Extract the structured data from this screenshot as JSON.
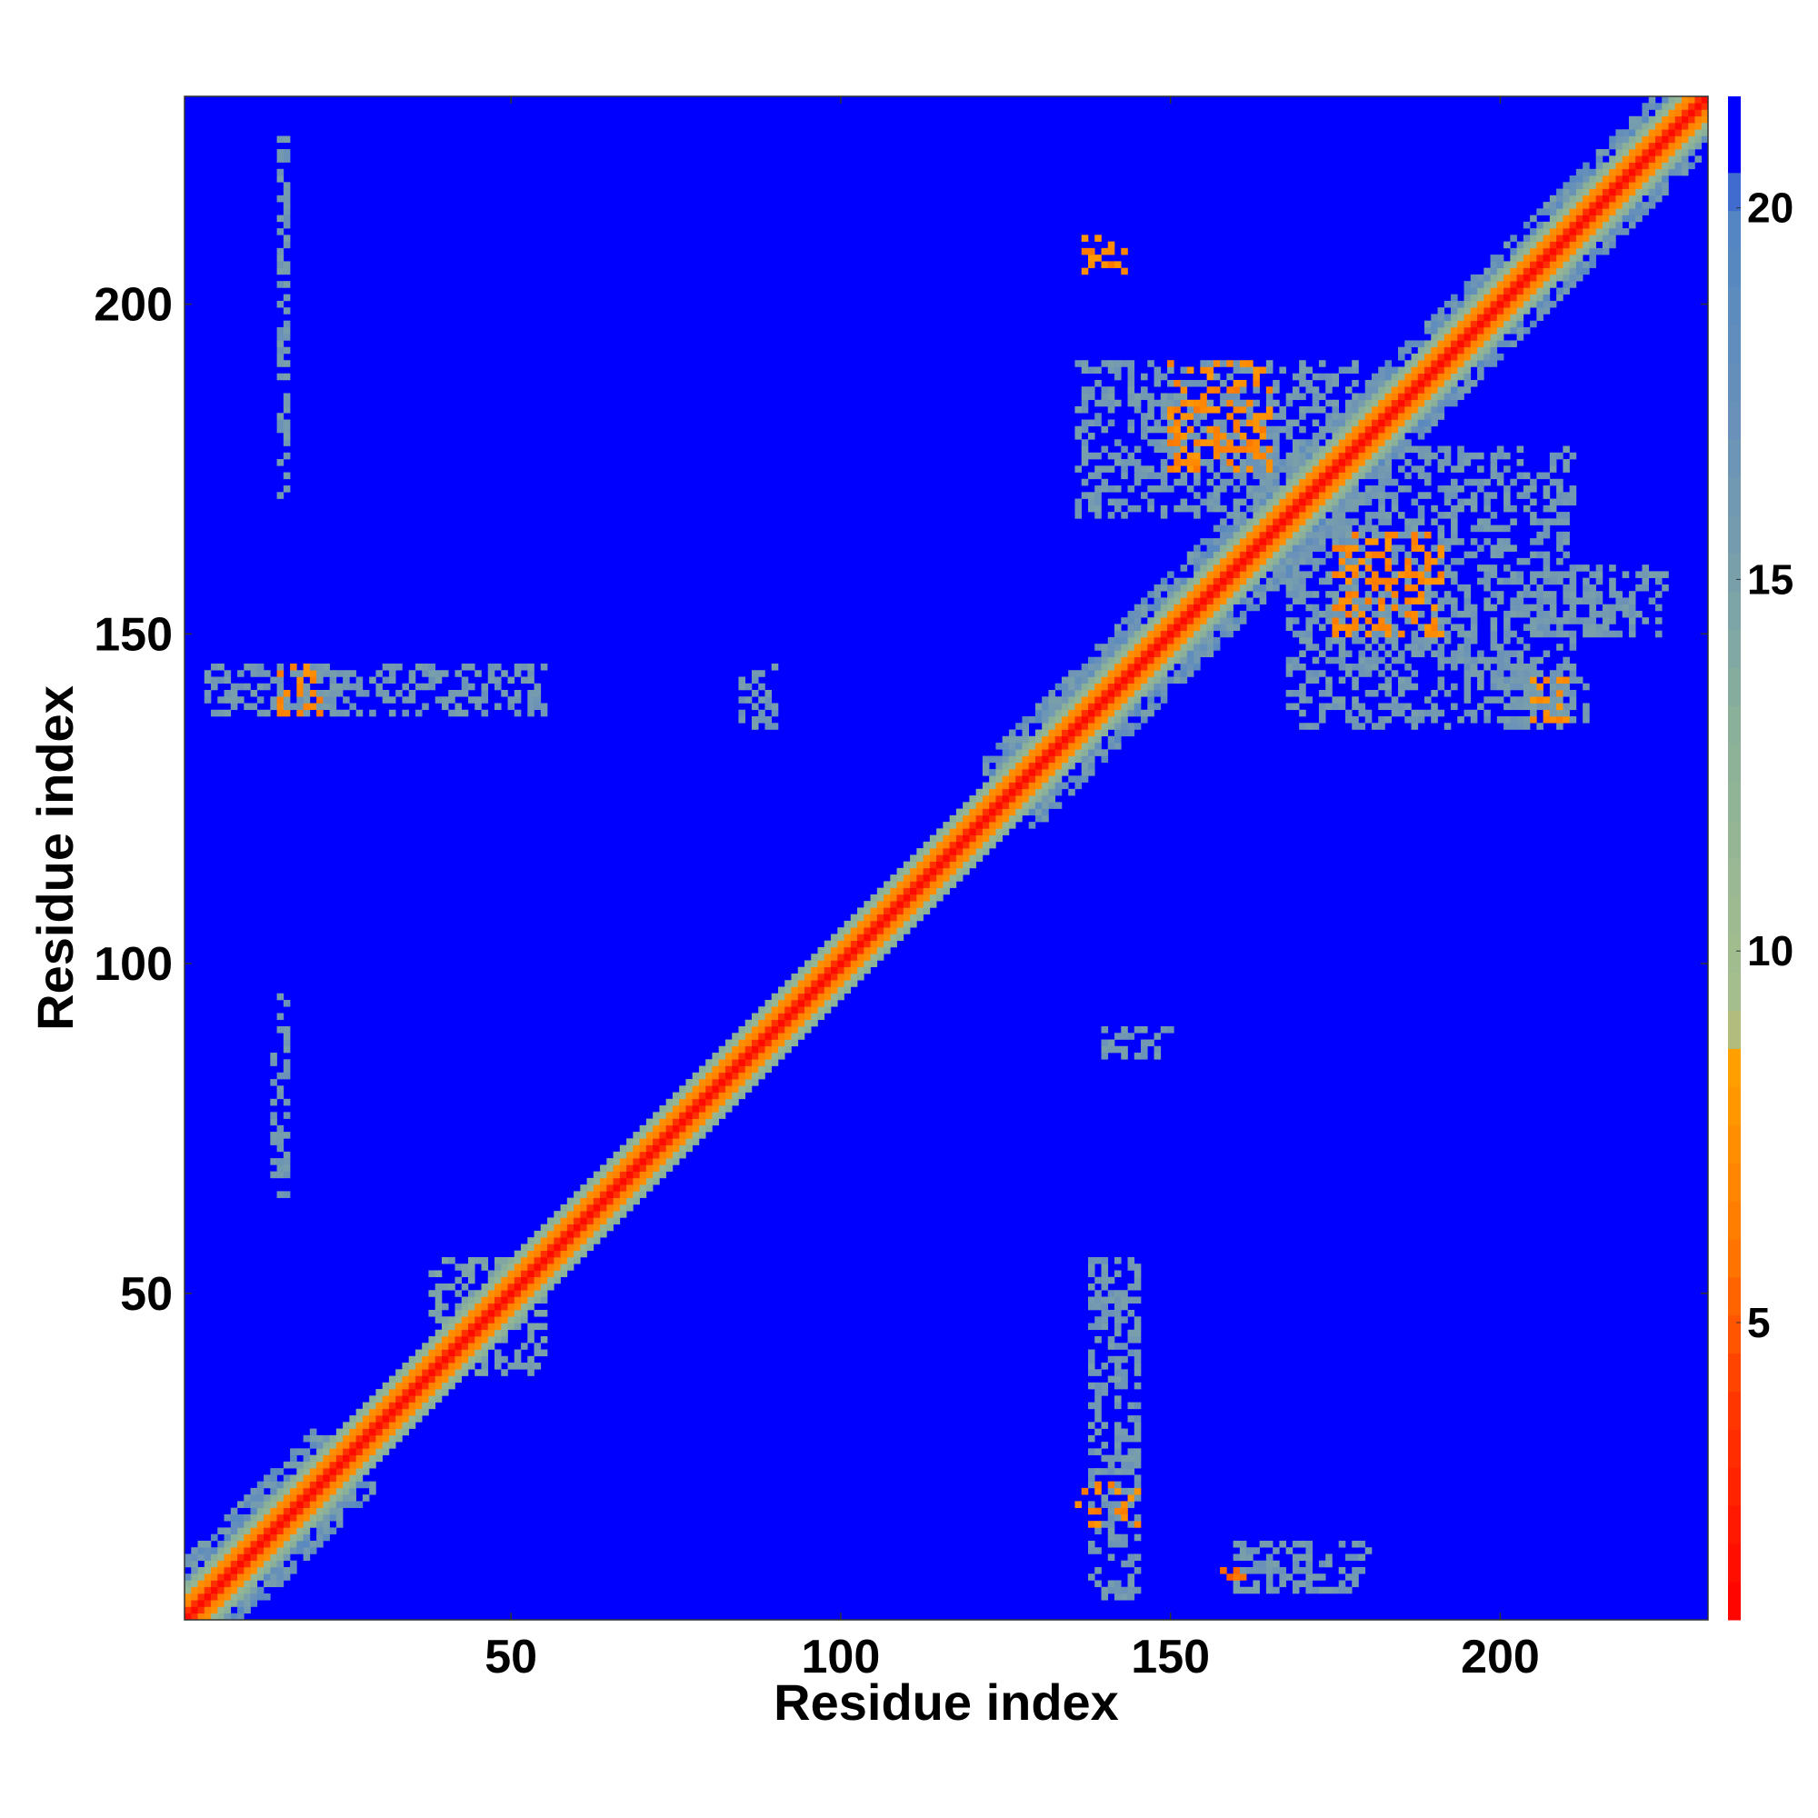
{
  "chart_data": {
    "type": "heatmap",
    "title": "",
    "xlabel": "Residue index",
    "ylabel": "Residue index",
    "xlim": [
      1,
      231
    ],
    "ylim": [
      1,
      231
    ],
    "x_ticks": [
      50,
      100,
      150,
      200
    ],
    "y_ticks": [
      50,
      100,
      150,
      200
    ],
    "colorbar": {
      "range": [
        1,
        21.5
      ],
      "ticks": [
        5,
        10,
        15,
        20
      ],
      "stops": [
        {
          "value": 1,
          "color": "#ff0000"
        },
        {
          "value": 4,
          "color": "#ff3a00"
        },
        {
          "value": 6,
          "color": "#ff7800"
        },
        {
          "value": 8.5,
          "color": "#ffa000"
        },
        {
          "value": 9,
          "color": "#a8c08c"
        },
        {
          "value": 13,
          "color": "#8ab09a"
        },
        {
          "value": 17,
          "color": "#6a92b8"
        },
        {
          "value": 20.2,
          "color": "#4f84c4"
        },
        {
          "value": 20.3,
          "color": "#0000ff"
        },
        {
          "value": 21.5,
          "color": "#0000ff"
        }
      ]
    },
    "background_value": 21,
    "diagonal_band": {
      "center": 1.5,
      "orange_halfwidth": 3,
      "green_halfwidth": 5
    },
    "wide_band_segments": [
      {
        "from": 1,
        "to": 25,
        "halfwidth": 9
      },
      {
        "from": 125,
        "to": 172,
        "halfwidth": 9
      },
      {
        "from": 172,
        "to": 231,
        "halfwidth": 8
      }
    ],
    "contact_regions": [
      {
        "x": [
          136,
          178
        ],
        "y": [
          168,
          191
        ],
        "value": 16
      },
      {
        "x": [
          168,
          211
        ],
        "y": [
          136,
          178
        ],
        "value": 16
      },
      {
        "x": [
          150,
          165
        ],
        "y": [
          175,
          191
        ],
        "value": 7
      },
      {
        "x": [
          175,
          191
        ],
        "y": [
          150,
          165
        ],
        "value": 7
      },
      {
        "x": [
          137,
          143
        ],
        "y": [
          205,
          210
        ],
        "value": 7
      },
      {
        "x": [
          205,
          210
        ],
        "y": [
          137,
          143
        ],
        "value": 7
      },
      {
        "x": [
          4,
          55
        ],
        "y": [
          138,
          145
        ],
        "value": 16
      },
      {
        "x": [
          15,
          21
        ],
        "y": [
          138,
          146
        ],
        "value": 7
      },
      {
        "x": [
          138,
          145
        ],
        "y": [
          4,
          55
        ],
        "value": 16
      },
      {
        "x": [
          136,
          145
        ],
        "y": [
          15,
          21
        ],
        "value": 7
      },
      {
        "x": [
          38,
          55
        ],
        "y": [
          38,
          55
        ],
        "value": 15
      },
      {
        "x": [
          15,
          16
        ],
        "y": [
          170,
          225
        ],
        "value": 16
      },
      {
        "x": [
          14,
          16
        ],
        "y": [
          65,
          95
        ],
        "value": 16
      },
      {
        "x": [
          140,
          150
        ],
        "y": [
          86,
          90
        ],
        "value": 16
      },
      {
        "x": [
          85,
          90
        ],
        "y": [
          136,
          145
        ],
        "value": 16
      },
      {
        "x": [
          160,
          180
        ],
        "y": [
          5,
          12
        ],
        "value": 16
      },
      {
        "x": [
          200,
          213
        ],
        "y": [
          137,
          145
        ],
        "value": 16
      },
      {
        "x": [
          205,
          225
        ],
        "y": [
          150,
          160
        ],
        "value": 16
      },
      {
        "x": [
          158,
          161
        ],
        "y": [
          7,
          8
        ],
        "value": 6
      }
    ]
  }
}
